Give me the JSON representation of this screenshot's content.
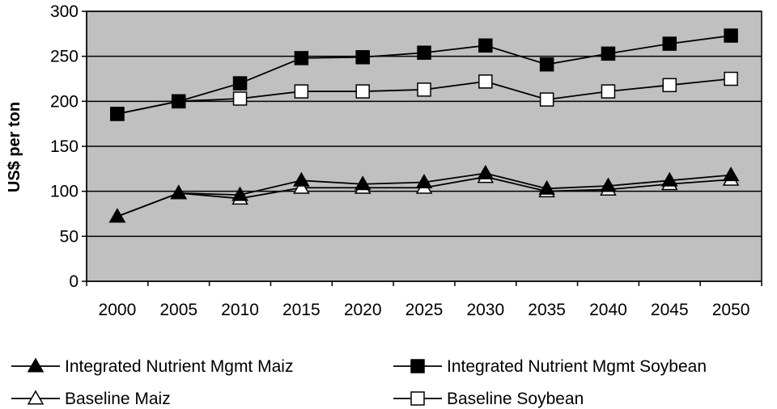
{
  "chart_data": {
    "type": "line",
    "title": "",
    "xlabel": "",
    "ylabel": "US$ per ton",
    "x": [
      "2000",
      "2005",
      "2010",
      "2015",
      "2020",
      "2025",
      "2030",
      "2035",
      "2040",
      "2045",
      "2050"
    ],
    "ylim": [
      0,
      300
    ],
    "yticks": [
      0,
      50,
      100,
      150,
      200,
      250,
      300
    ],
    "grid": true,
    "legend_position": "bottom",
    "plot_background": "#c0c0c0",
    "series": [
      {
        "name": "Integrated Nutrient Mgmt Maiz",
        "marker": "filled-triangle",
        "values": [
          72,
          98,
          96,
          112,
          108,
          110,
          120,
          103,
          106,
          112,
          118
        ]
      },
      {
        "name": "Integrated Nutrient Mgmt Soybean",
        "marker": "filled-square",
        "values": [
          186,
          200,
          220,
          248,
          249,
          254,
          262,
          241,
          253,
          264,
          273
        ]
      },
      {
        "name": "Baseline Maiz",
        "marker": "open-triangle",
        "values": [
          72,
          98,
          92,
          104,
          104,
          104,
          116,
          100,
          102,
          108,
          113
        ]
      },
      {
        "name": "Baseline Soybean",
        "marker": "open-square",
        "values": [
          186,
          200,
          203,
          211,
          211,
          213,
          222,
          202,
          211,
          218,
          225
        ]
      }
    ]
  }
}
